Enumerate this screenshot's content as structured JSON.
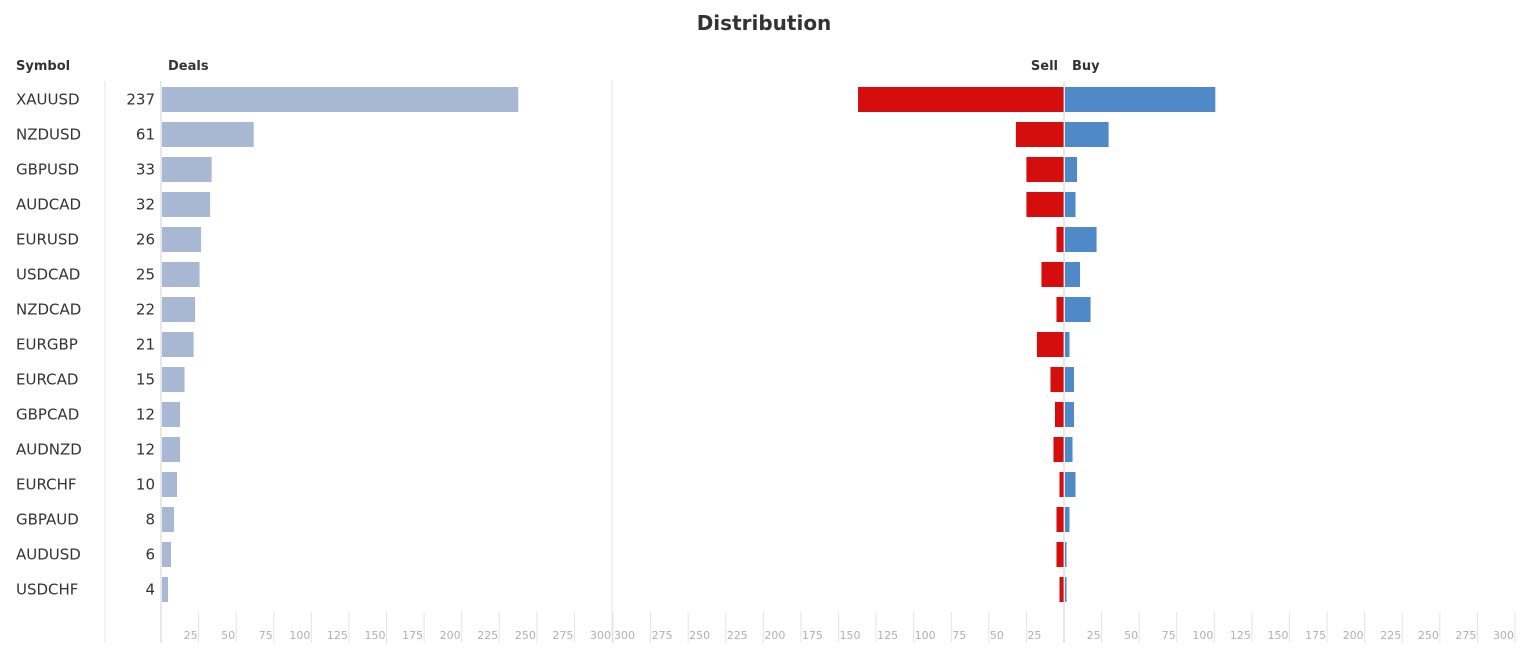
{
  "chart_data": {
    "type": "bar",
    "title": "Distribution",
    "symbol_header": "Symbol",
    "deals_header": "Deals",
    "sell_label": "Sell",
    "buy_label": "Buy",
    "categories": [
      "XAUUSD",
      "NZDUSD",
      "GBPUSD",
      "AUDCAD",
      "EURUSD",
      "USDCAD",
      "NZDCAD",
      "EURGBP",
      "EURCAD",
      "GBPCAD",
      "AUDNZD",
      "EURCHF",
      "GBPAUD",
      "AUDUSD",
      "USDCHF"
    ],
    "deals": [
      237,
      61,
      33,
      32,
      26,
      25,
      22,
      21,
      15,
      12,
      12,
      10,
      8,
      6,
      4
    ],
    "sell": [
      137,
      32,
      25,
      25,
      5,
      15,
      5,
      18,
      9,
      6,
      7,
      3,
      5,
      5,
      3
    ],
    "buy": [
      100,
      29,
      8,
      7,
      21,
      10,
      17,
      3,
      6,
      6,
      5,
      7,
      3,
      1,
      1
    ],
    "deals_xlim": [
      0,
      300
    ],
    "sellbuy_xlim": [
      0,
      300
    ],
    "ticks": [
      25,
      50,
      75,
      100,
      125,
      150,
      175,
      200,
      225,
      250,
      275,
      300
    ],
    "colors": {
      "deals": "#a8b8d2",
      "sell": "#d50d0d",
      "buy": "#4f89c8"
    }
  }
}
